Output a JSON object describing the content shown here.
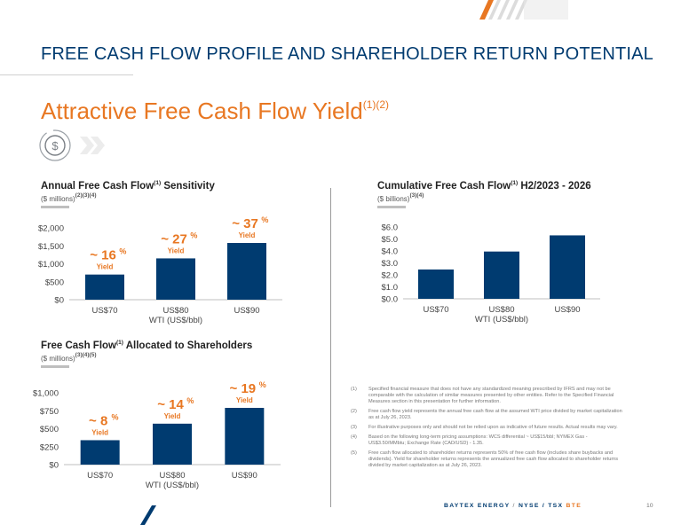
{
  "header": {
    "title": "FREE CASH FLOW PROFILE AND SHAREHOLDER RETURN POTENTIAL",
    "subtitle": "Attractive Free Cash Flow Yield",
    "subtitle_sup": "(1)(2)"
  },
  "colors": {
    "navy": "#003b70",
    "orange": "#e87722",
    "bar": "#003b70"
  },
  "icons": {
    "yield": "dollar-coin-chevrons-icon"
  },
  "chart_data": [
    {
      "type": "bar",
      "title": "Annual Free Cash Flow",
      "title_sup": "(1)",
      "title_suffix": " Sensitivity",
      "units": "($ millions)",
      "units_sup": "(2)(3)(4)",
      "categories": [
        "US$70",
        "US$80",
        "US$90"
      ],
      "values": [
        700,
        1150,
        1580
      ],
      "ylim": [
        0,
        2000
      ],
      "yticks": [
        "$0",
        "$500",
        "$1,000",
        "$1,500",
        "$2,000"
      ],
      "xlabel": "WTI (US$/bbl)",
      "annotations": [
        {
          "value": "~ 16",
          "pct": "%",
          "label": "Yield"
        },
        {
          "value": "~ 27",
          "pct": "%",
          "label": "Yield"
        },
        {
          "value": "~ 37",
          "pct": "%",
          "label": "Yield"
        }
      ]
    },
    {
      "type": "bar",
      "title": "Cumulative Free Cash Flow",
      "title_sup": "(1)",
      "title_suffix": " H2/2023 - 2026",
      "units": "($ billions)",
      "units_sup": "(3)(4)",
      "categories": [
        "US$70",
        "US$80",
        "US$90"
      ],
      "values": [
        2.45,
        3.95,
        5.3
      ],
      "ylim": [
        0,
        6
      ],
      "yticks": [
        "$0.0",
        "$1.0",
        "$2.0",
        "$3.0",
        "$4.0",
        "$5.0",
        "$6.0"
      ],
      "xlabel": "WTI (US$/bbl)"
    },
    {
      "type": "bar",
      "title": "Free Cash Flow",
      "title_sup": "(1)",
      "title_suffix": " Allocated to Shareholders",
      "units": "($ millions)",
      "units_sup": "(3)(4)(5)",
      "categories": [
        "US$70",
        "US$80",
        "US$90"
      ],
      "values": [
        340,
        570,
        790
      ],
      "ylim": [
        0,
        1000
      ],
      "yticks": [
        "$0",
        "$250",
        "$500",
        "$750",
        "$1,000"
      ],
      "xlabel": "WTI (US$/bbl)",
      "annotations": [
        {
          "value": "~ 8",
          "pct": "%",
          "label": "Yield"
        },
        {
          "value": "~ 14",
          "pct": "%",
          "label": "Yield"
        },
        {
          "value": "~ 19",
          "pct": "%",
          "label": "Yield"
        }
      ]
    }
  ],
  "footnotes": [
    {
      "num": "(1)",
      "text": "Specified financial measure that does not have any standardized meaning prescribed by IFRS and may not be comparable with the calculation of similar measures presented by other entities. Refer to the Specified Financial Measures section in this presentation for further information."
    },
    {
      "num": "(2)",
      "text": "Free cash flow yield represents the annual free cash flow at the assumed WTI price divided by market capitalization as at July 26, 2023."
    },
    {
      "num": "(3)",
      "text": "For illustrative purposes only and should not be relied upon as indicative of future results. Actual results may vary."
    },
    {
      "num": "(4)",
      "text": "Based on the following long-term pricing assumptions: WCS differential ~ US$15/bbl; NYMEX Gas - US$3.50/MMbtu; Exchange Rate (CAD/USD) - 1.35."
    },
    {
      "num": "(5)",
      "text": "Free cash flow allocated to shareholder returns represents 50% of free cash flow (includes share buybacks and dividends). Yield for shareholder returns represents the annualized free cash flow allocated to shareholder returns divided by market capitalization as at July 26, 2023."
    }
  ],
  "footer": {
    "company": "BAYTEX ENERGY",
    "sep1": "/",
    "exchange": "NYSE / TSX",
    "ticker": "BTE",
    "page": "10"
  }
}
